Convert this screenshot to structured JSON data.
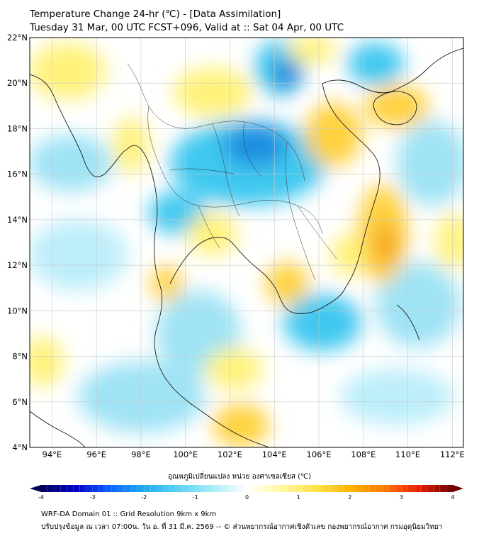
{
  "header": {
    "title": "Temperature Change 24-hr (℃) - [Data Assimilation]",
    "subtitle": "Tuesday 31 Mar, 00 UTC FCST+096, Valid at :: Sat 04 Apr, 00 UTC"
  },
  "map": {
    "lat_range": [
      4,
      22
    ],
    "lon_range": [
      93,
      112.5
    ],
    "lat_ticks": [
      "4°N",
      "6°N",
      "8°N",
      "10°N",
      "12°N",
      "14°N",
      "16°N",
      "18°N",
      "20°N",
      "22°N"
    ],
    "lon_ticks": [
      "94°E",
      "96°E",
      "98°E",
      "100°E",
      "102°E",
      "104°E",
      "106°E",
      "108°E",
      "110°E",
      "112°E"
    ],
    "lat_values": [
      4,
      6,
      8,
      10,
      12,
      14,
      16,
      18,
      20,
      22
    ],
    "lon_values": [
      94,
      96,
      98,
      100,
      102,
      104,
      106,
      108,
      110,
      112
    ],
    "colors": {
      "background": "#ffffff",
      "neg_light": "#9fe3f5",
      "neg_mid": "#41c8f0",
      "neg_deep": "#1b8ee0",
      "pos_light": "#fff27a",
      "pos_mid": "#ffd23d",
      "pos_deep": "#f5a623"
    }
  },
  "colorbar": {
    "label": "อุณหภูมิเปลี่ยนแปลง หน่วย องศาเซลเซียส (℃)",
    "range": [
      -4,
      4
    ],
    "ticks": [
      "-4",
      "-3",
      "-2",
      "-1",
      "0",
      "1",
      "2",
      "3",
      "4"
    ],
    "tick_values": [
      -4,
      -3,
      -2,
      -1,
      0,
      1,
      2,
      3,
      4
    ],
    "stops": [
      "#00005a",
      "#0000c8",
      "#0a64ff",
      "#1eaaf0",
      "#5ad2f5",
      "#a8ecf8",
      "#ffffff",
      "#fff8a0",
      "#ffe24a",
      "#ffb400",
      "#ff7800",
      "#e81e00",
      "#6e0000"
    ]
  },
  "footer": {
    "line1": "WRF-DA Domain 01 :: Grid Resolution 9km x 9km",
    "line2": "ปรับปรุงข้อมูล ณ เวลา 07:00น. วัน อ. ที่ 31 มี.ค. 2569 -- © ส่วนพยากรณ์อากาศเชิงตัวเลข กองพยากรณ์อากาศ กรมอุตุนิยมวิทยา"
  }
}
